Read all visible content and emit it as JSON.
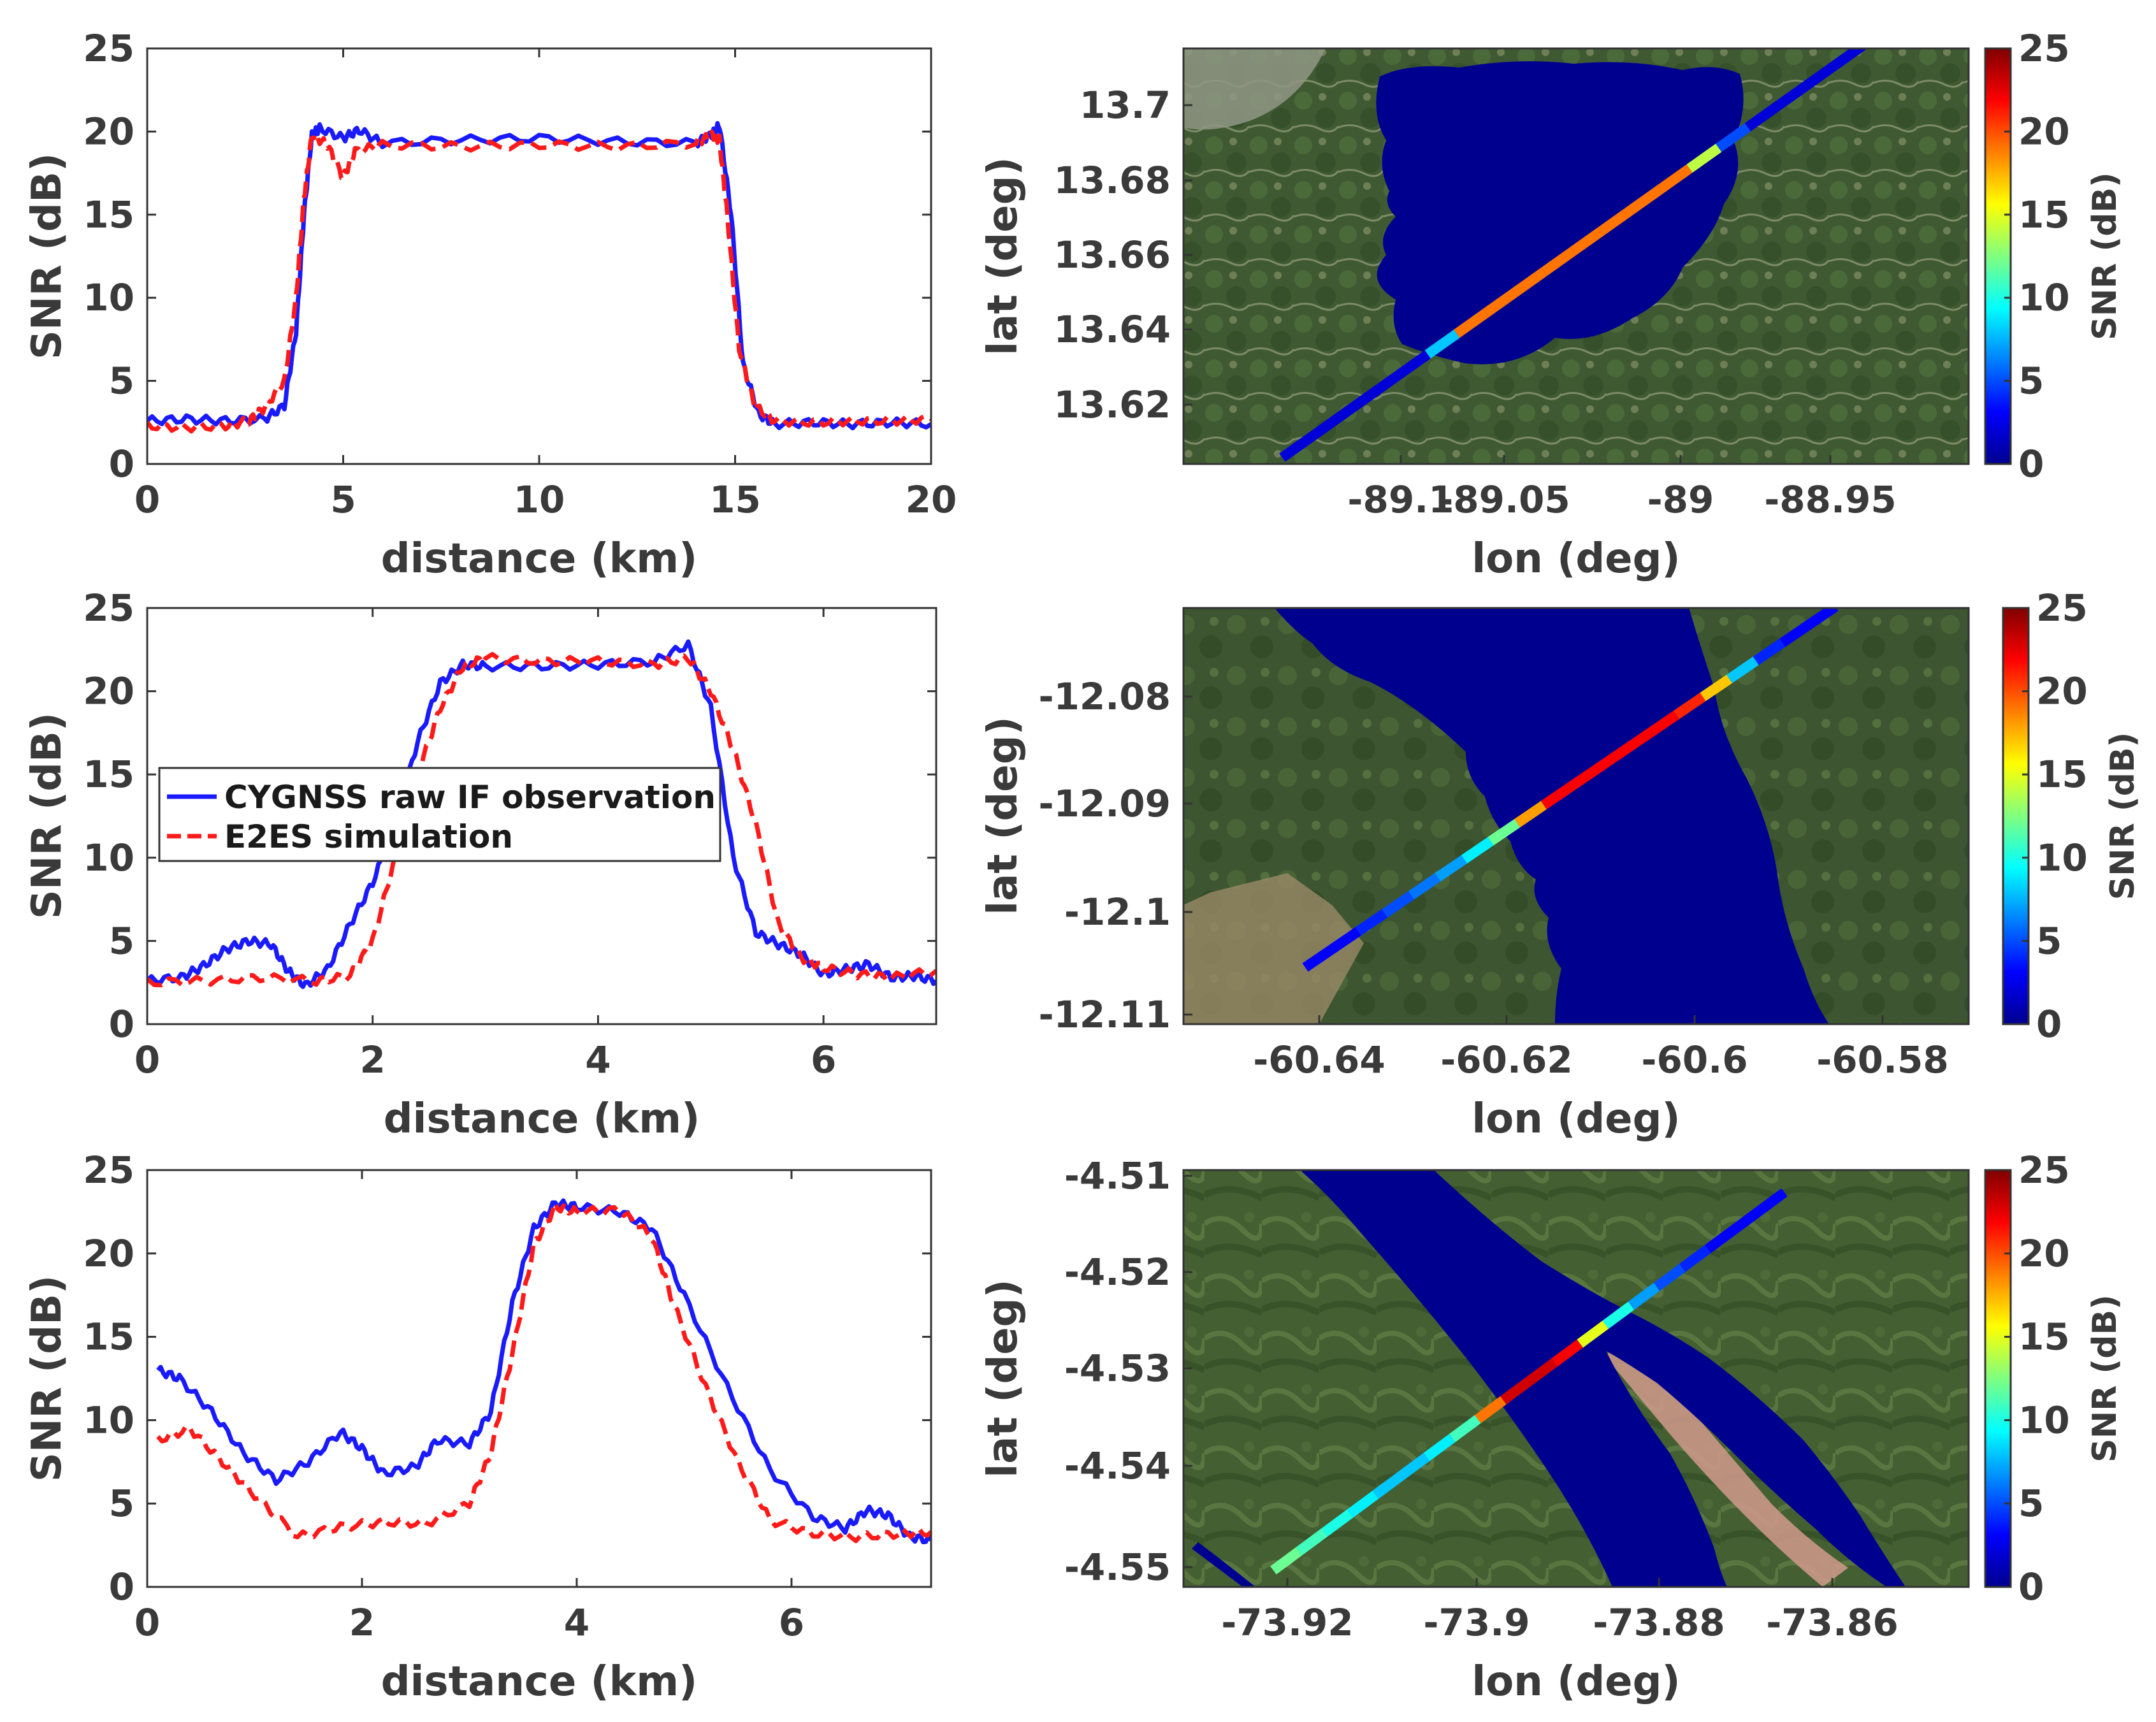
{
  "colors": {
    "obs": "#1a1aff",
    "sim": "#ff1a1a",
    "water": "#00008f",
    "axis": "#3a3a3a"
  },
  "legend": {
    "obs_label": "CYGNSS raw IF observation",
    "sim_label": "E2ES simulation"
  },
  "colorbar": {
    "label": "SNR (dB)",
    "ticks": [
      "0",
      "5",
      "10",
      "15",
      "20",
      "25"
    ],
    "range": [
      0,
      25
    ]
  },
  "chart_data": [
    {
      "type": "line",
      "title": "",
      "xlabel": "distance (km)",
      "ylabel": "SNR (dB)",
      "xlim": [
        0,
        20
      ],
      "ylim": [
        0,
        25
      ],
      "xticks": [
        0,
        5,
        10,
        15,
        20
      ],
      "yticks": [
        0,
        5,
        10,
        15,
        20,
        25
      ],
      "series": [
        {
          "name": "CYGNSS raw IF observation",
          "points": [
            [
              0,
              2.6
            ],
            [
              1,
              2.7
            ],
            [
              2,
              2.6
            ],
            [
              3,
              2.7
            ],
            [
              3.5,
              3.5
            ],
            [
              3.8,
              8
            ],
            [
              4.0,
              15
            ],
            [
              4.2,
              19.8
            ],
            [
              4.4,
              20.2
            ],
            [
              5,
              19.6
            ],
            [
              5.4,
              20.1
            ],
            [
              6,
              19.3
            ],
            [
              8,
              19.5
            ],
            [
              10,
              19.6
            ],
            [
              12,
              19.4
            ],
            [
              14,
              19.3
            ],
            [
              14.4,
              19.8
            ],
            [
              14.6,
              20.4
            ],
            [
              14.9,
              15
            ],
            [
              15.2,
              6
            ],
            [
              15.6,
              3
            ],
            [
              16,
              2.4
            ],
            [
              17,
              2.5
            ],
            [
              18,
              2.4
            ],
            [
              19,
              2.5
            ],
            [
              20,
              2.4
            ]
          ]
        },
        {
          "name": "E2ES simulation",
          "points": [
            [
              0,
              2.3
            ],
            [
              1,
              2.2
            ],
            [
              2,
              2.3
            ],
            [
              2.6,
              2.6
            ],
            [
              3,
              3.4
            ],
            [
              3.5,
              5
            ],
            [
              3.8,
              10
            ],
            [
              4.0,
              16
            ],
            [
              4.2,
              19.8
            ],
            [
              4.6,
              19.2
            ],
            [
              5.0,
              17.2
            ],
            [
              5.3,
              18.8
            ],
            [
              6,
              19.2
            ],
            [
              8,
              19.1
            ],
            [
              10,
              19.2
            ],
            [
              12,
              19.1
            ],
            [
              14,
              19.3
            ],
            [
              14.4,
              19.8
            ],
            [
              14.6,
              19.5
            ],
            [
              14.8,
              15
            ],
            [
              15.1,
              7
            ],
            [
              15.5,
              3.5
            ],
            [
              16,
              2.6
            ],
            [
              17,
              2.5
            ],
            [
              18,
              2.6
            ],
            [
              19,
              2.6
            ],
            [
              20,
              2.7
            ]
          ]
        }
      ]
    },
    {
      "type": "line",
      "title": "",
      "xlabel": "distance (km)",
      "ylabel": "SNR (dB)",
      "xlim": [
        0,
        7
      ],
      "ylim": [
        0,
        25
      ],
      "xticks": [
        0,
        2,
        4,
        6
      ],
      "yticks": [
        0,
        5,
        10,
        15,
        20,
        25
      ],
      "legend_position": "center-left",
      "series": [
        {
          "name": "CYGNSS raw IF observation",
          "points": [
            [
              0,
              2.6
            ],
            [
              0.3,
              2.8
            ],
            [
              0.5,
              3.5
            ],
            [
              0.7,
              4.5
            ],
            [
              0.9,
              5.0
            ],
            [
              1.1,
              4.8
            ],
            [
              1.25,
              3.2
            ],
            [
              1.4,
              2.3
            ],
            [
              1.6,
              3.3
            ],
            [
              1.8,
              6
            ],
            [
              2.0,
              8.5
            ],
            [
              2.2,
              12
            ],
            [
              2.4,
              17
            ],
            [
              2.6,
              20.5
            ],
            [
              2.8,
              21.6
            ],
            [
              3,
              21.5
            ],
            [
              3.5,
              21.5
            ],
            [
              4,
              21.6
            ],
            [
              4.5,
              21.8
            ],
            [
              4.8,
              22.8
            ],
            [
              5.0,
              19
            ],
            [
              5.2,
              10
            ],
            [
              5.4,
              5.5
            ],
            [
              5.6,
              4.8
            ],
            [
              5.8,
              4.2
            ],
            [
              6,
              3
            ],
            [
              6.2,
              3.3
            ],
            [
              6.4,
              3.6
            ],
            [
              6.6,
              2.8
            ],
            [
              6.8,
              2.9
            ],
            [
              7,
              2.6
            ]
          ]
        },
        {
          "name": "E2ES simulation",
          "points": [
            [
              0,
              2.5
            ],
            [
              0.5,
              2.6
            ],
            [
              1,
              2.8
            ],
            [
              1.5,
              2.6
            ],
            [
              1.8,
              2.9
            ],
            [
              2.0,
              5
            ],
            [
              2.2,
              10
            ],
            [
              2.4,
              15
            ],
            [
              2.6,
              19
            ],
            [
              2.8,
              21.5
            ],
            [
              3,
              22
            ],
            [
              3.5,
              21.8
            ],
            [
              4,
              21.8
            ],
            [
              4.5,
              21.6
            ],
            [
              4.8,
              22
            ],
            [
              5.0,
              20
            ],
            [
              5.2,
              16.5
            ],
            [
              5.4,
              12
            ],
            [
              5.6,
              6
            ],
            [
              5.8,
              4
            ],
            [
              6,
              3.4
            ],
            [
              6.3,
              3
            ],
            [
              6.6,
              2.8
            ],
            [
              7,
              3.2
            ]
          ]
        }
      ]
    },
    {
      "type": "line",
      "title": "",
      "xlabel": "distance (km)",
      "ylabel": "SNR (dB)",
      "xlim": [
        0,
        7.3
      ],
      "ylim": [
        0,
        25
      ],
      "xticks": [
        0,
        2,
        4,
        6
      ],
      "yticks": [
        0,
        5,
        10,
        15,
        20,
        25
      ],
      "series": [
        {
          "name": "CYGNSS raw IF observation",
          "points": [
            [
              0.1,
              13
            ],
            [
              0.3,
              12.5
            ],
            [
              0.6,
              10.5
            ],
            [
              0.9,
              8
            ],
            [
              1.2,
              6.4
            ],
            [
              1.5,
              7.5
            ],
            [
              1.8,
              9.3
            ],
            [
              2.0,
              8.3
            ],
            [
              2.2,
              6.8
            ],
            [
              2.5,
              7.2
            ],
            [
              2.7,
              8.8
            ],
            [
              3.0,
              8.6
            ],
            [
              3.2,
              10.5
            ],
            [
              3.4,
              17
            ],
            [
              3.6,
              21.5
            ],
            [
              3.8,
              23
            ],
            [
              4,
              22.8
            ],
            [
              4.4,
              22.5
            ],
            [
              4.7,
              21.5
            ],
            [
              5.0,
              17.5
            ],
            [
              5.4,
              12
            ],
            [
              5.8,
              7
            ],
            [
              6.2,
              4.2
            ],
            [
              6.5,
              3.5
            ],
            [
              6.7,
              4.6
            ],
            [
              6.9,
              4.3
            ],
            [
              7.1,
              3
            ],
            [
              7.3,
              2.8
            ]
          ]
        },
        {
          "name": "E2ES simulation",
          "points": [
            [
              0.1,
              8.8
            ],
            [
              0.4,
              9.5
            ],
            [
              0.7,
              7.5
            ],
            [
              1.0,
              5.5
            ],
            [
              1.4,
              3.0
            ],
            [
              1.8,
              3.6
            ],
            [
              2.2,
              3.9
            ],
            [
              2.6,
              3.8
            ],
            [
              3.0,
              5.0
            ],
            [
              3.2,
              8
            ],
            [
              3.4,
              14
            ],
            [
              3.6,
              20.5
            ],
            [
              3.8,
              22.8
            ],
            [
              4,
              22.5
            ],
            [
              4.4,
              22.6
            ],
            [
              4.7,
              21
            ],
            [
              4.9,
              17
            ],
            [
              5.2,
              12
            ],
            [
              5.5,
              7.5
            ],
            [
              5.8,
              4
            ],
            [
              6.2,
              3.2
            ],
            [
              6.6,
              3.0
            ],
            [
              7.0,
              3.2
            ],
            [
              7.3,
              3.3
            ]
          ]
        }
      ]
    },
    {
      "type": "heatmap",
      "title": "",
      "xlabel": "lon (deg)",
      "ylabel": "lat (deg)",
      "xticks": [
        "-89.1",
        "-89.05",
        "-89",
        "-88.95"
      ],
      "yticks": [
        "13.7",
        "13.68",
        "13.66",
        "13.64",
        "13.62"
      ],
      "colorbar_label": "SNR (dB)",
      "track_snr_profile": [
        2,
        2,
        2,
        2,
        2,
        8,
        19,
        19,
        19,
        19,
        19,
        19,
        19,
        19,
        14,
        5,
        2,
        2,
        2,
        2
      ]
    },
    {
      "type": "heatmap",
      "title": "",
      "xlabel": "lon (deg)",
      "ylabel": "lat (deg)",
      "xticks": [
        "-60.64",
        "-60.62",
        "-60.6",
        "-60.58"
      ],
      "yticks": [
        "-12.08",
        "-12.09",
        "-12.1",
        "-12.11"
      ],
      "colorbar_label": "SNR (dB)",
      "track_snr_profile": [
        3,
        3,
        4,
        5,
        6,
        7,
        9,
        12,
        18,
        22,
        22,
        22,
        22,
        22,
        21,
        17,
        8,
        4,
        3,
        3
      ]
    },
    {
      "type": "heatmap",
      "title": "",
      "xlabel": "lon (deg)",
      "ylabel": "lat (deg)",
      "xticks": [
        "-73.92",
        "-73.9",
        "-73.88",
        "-73.86"
      ],
      "yticks": [
        "-4.51",
        "-4.52",
        "-4.53",
        "-4.54",
        "-4.55"
      ],
      "colorbar_label": "SNR (dB)",
      "track_snr_profile": [
        12,
        11,
        10,
        9,
        8,
        8,
        9,
        11,
        19,
        23,
        23,
        22,
        15,
        10,
        7,
        5,
        4,
        3,
        3,
        3
      ]
    }
  ]
}
